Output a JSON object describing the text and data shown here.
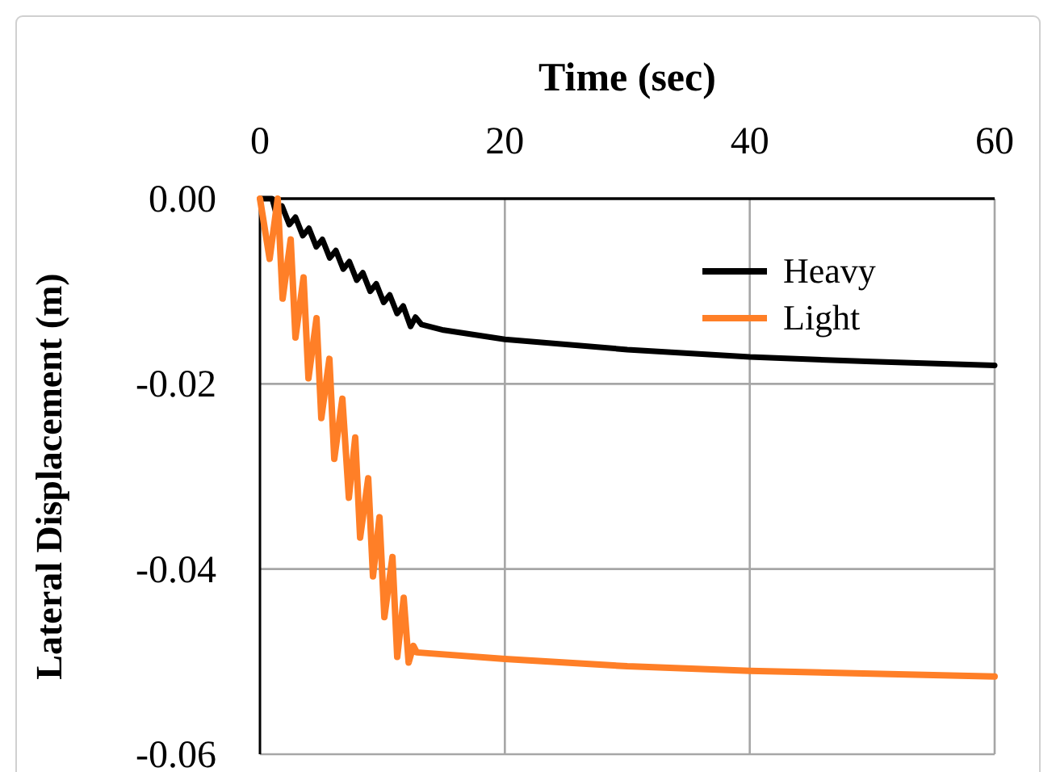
{
  "chart_data": {
    "type": "line",
    "xlabel": "Time (sec)",
    "ylabel": "Lateral Displacement (m)",
    "xlim": [
      0,
      60
    ],
    "xticks": [
      0,
      20,
      40,
      60
    ],
    "ylim": [
      -0.06,
      0
    ],
    "yticks": [
      {
        "value": 0,
        "label": "0.00"
      },
      {
        "value": -0.02,
        "label": "-0.02"
      },
      {
        "value": -0.04,
        "label": "-0.04"
      },
      {
        "value": -0.06,
        "label": "-0.06"
      }
    ],
    "grid": true,
    "legend": "top right",
    "marker": "none",
    "line_style": "solid",
    "series": [
      {
        "name": "Heavy",
        "color": "#000000",
        "x": [
          0,
          1.0,
          1.3,
          1.8,
          2.4,
          2.9,
          3.5,
          4.0,
          4.6,
          5.1,
          5.7,
          6.2,
          6.8,
          7.3,
          7.9,
          8.4,
          9.0,
          9.5,
          10.1,
          10.6,
          11.2,
          11.7,
          12.3,
          12.7,
          13.2,
          15,
          20,
          30,
          40,
          50,
          60
        ],
        "values": [
          0,
          0,
          -0.0015,
          -0.0008,
          -0.0028,
          -0.002,
          -0.004,
          -0.0032,
          -0.0052,
          -0.0044,
          -0.0064,
          -0.0056,
          -0.0076,
          -0.0068,
          -0.0088,
          -0.008,
          -0.01,
          -0.0092,
          -0.0112,
          -0.0104,
          -0.0124,
          -0.0116,
          -0.0138,
          -0.0128,
          -0.0136,
          -0.0142,
          -0.0152,
          -0.0163,
          -0.0171,
          -0.0176,
          -0.018
        ]
      },
      {
        "name": "Light",
        "color": "#ff7f27",
        "x": [
          0,
          0.79,
          1.45,
          1.85,
          2.51,
          2.9,
          3.56,
          3.96,
          4.62,
          5.01,
          5.67,
          6.07,
          6.73,
          7.26,
          7.78,
          8.18,
          8.84,
          9.23,
          9.76,
          10.16,
          10.82,
          11.21,
          11.74,
          12.14,
          12.53,
          12.8,
          20,
          30,
          40,
          50,
          60
        ],
        "values": [
          0,
          -0.0065,
          0,
          -0.0108,
          -0.0044,
          -0.015,
          -0.0085,
          -0.0194,
          -0.0129,
          -0.0237,
          -0.0173,
          -0.0281,
          -0.0216,
          -0.0323,
          -0.0258,
          -0.0366,
          -0.0302,
          -0.0408,
          -0.0344,
          -0.0452,
          -0.0387,
          -0.0495,
          -0.0431,
          -0.0501,
          -0.0483,
          -0.049,
          -0.0497,
          -0.0505,
          -0.051,
          -0.0513,
          -0.0516
        ]
      }
    ]
  }
}
